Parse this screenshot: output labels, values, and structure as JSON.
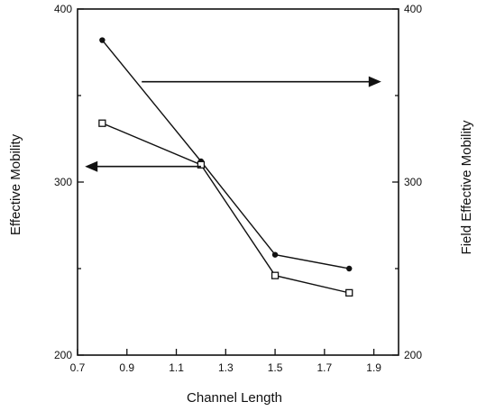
{
  "chart_data": {
    "type": "line",
    "title": "",
    "xlabel": "Channel Length",
    "ylabel": "Effective Mobility",
    "y2label": "Field Effective Mobility",
    "xlim": [
      0.7,
      2.0
    ],
    "ylim": [
      200,
      400
    ],
    "y2lim": [
      200,
      400
    ],
    "x_ticks": [
      0.7,
      0.9,
      1.1,
      1.3,
      1.5,
      1.7,
      1.9
    ],
    "x_tick_labels": [
      "0.7",
      "0.9",
      "1.1",
      "1.3",
      "1.5",
      "1.7",
      "1.9"
    ],
    "y_ticks": [
      200,
      300,
      400
    ],
    "y_tick_labels": [
      "200",
      "300",
      "400"
    ],
    "y2_ticks": [
      200,
      300,
      400
    ],
    "y2_tick_labels": [
      "200",
      "300",
      "400"
    ],
    "grid": false,
    "series": [
      {
        "axis": "right",
        "marker": "filled-circle",
        "x": [
          0.8,
          1.2,
          1.5,
          1.8
        ],
        "y": [
          382,
          312,
          258,
          250
        ]
      },
      {
        "axis": "left",
        "marker": "open-square",
        "x": [
          0.8,
          1.2,
          1.5,
          1.8
        ],
        "y": [
          334,
          310,
          246,
          236
        ]
      }
    ],
    "annotations": [
      {
        "type": "arrow",
        "direction": "right",
        "from": [
          0.96,
          358
        ],
        "to": [
          1.93,
          358
        ]
      },
      {
        "type": "arrow",
        "direction": "left",
        "from": [
          1.2,
          309
        ],
        "to": [
          0.73,
          309
        ]
      }
    ]
  }
}
